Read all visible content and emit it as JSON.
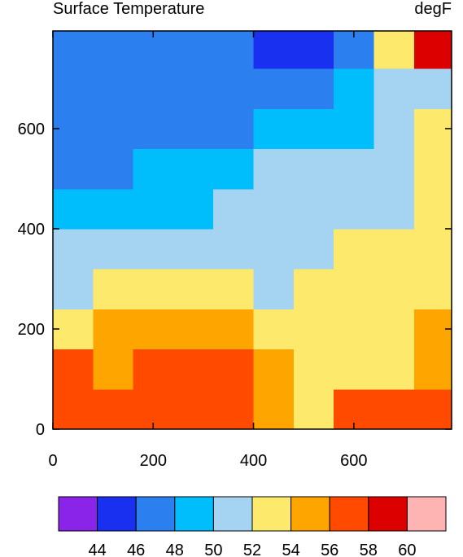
{
  "chart_data": {
    "type": "contour",
    "title": "Surface Temperature",
    "units": "degF",
    "x": [
      40,
      120,
      200,
      280,
      360,
      440,
      520,
      600,
      680,
      760
    ],
    "y": [
      40,
      120,
      200,
      280,
      360,
      440,
      520,
      600,
      680,
      760
    ],
    "z": [
      [
        57,
        57,
        57,
        57,
        57,
        55,
        53,
        57,
        57,
        57
      ],
      [
        57,
        55,
        57,
        57,
        57,
        55,
        53,
        53,
        53,
        55
      ],
      [
        53,
        55,
        55,
        55,
        55,
        53,
        53,
        53,
        53,
        55
      ],
      [
        51,
        53,
        53,
        53,
        53,
        51,
        53,
        53,
        53,
        53
      ],
      [
        51,
        51,
        51,
        51,
        51,
        51,
        51,
        53,
        53,
        53
      ],
      [
        49,
        49,
        49,
        49,
        51,
        51,
        51,
        51,
        51,
        53
      ],
      [
        47,
        47,
        49,
        49,
        49,
        51,
        51,
        51,
        51,
        53
      ],
      [
        47,
        47,
        47,
        47,
        47,
        49,
        49,
        49,
        51,
        53
      ],
      [
        47,
        47,
        47,
        47,
        47,
        47,
        47,
        49,
        51,
        51
      ],
      [
        47,
        47,
        47,
        47,
        47,
        45,
        45,
        47,
        53,
        59
      ]
    ],
    "levels": [
      44,
      46,
      48,
      50,
      52,
      54,
      56,
      58,
      60
    ],
    "colors": [
      "#8a24e8",
      "#1a30f0",
      "#2b7fef",
      "#00bdfb",
      "#a4d4f1",
      "#fde96b",
      "#ffa500",
      "#ff4a00",
      "#dc0000",
      "#ffb4b4"
    ],
    "xlim": [
      0,
      795
    ],
    "ylim": [
      0,
      795
    ],
    "xticks": [
      0,
      200,
      400,
      600
    ],
    "yticks": [
      0,
      200,
      400,
      600
    ]
  }
}
